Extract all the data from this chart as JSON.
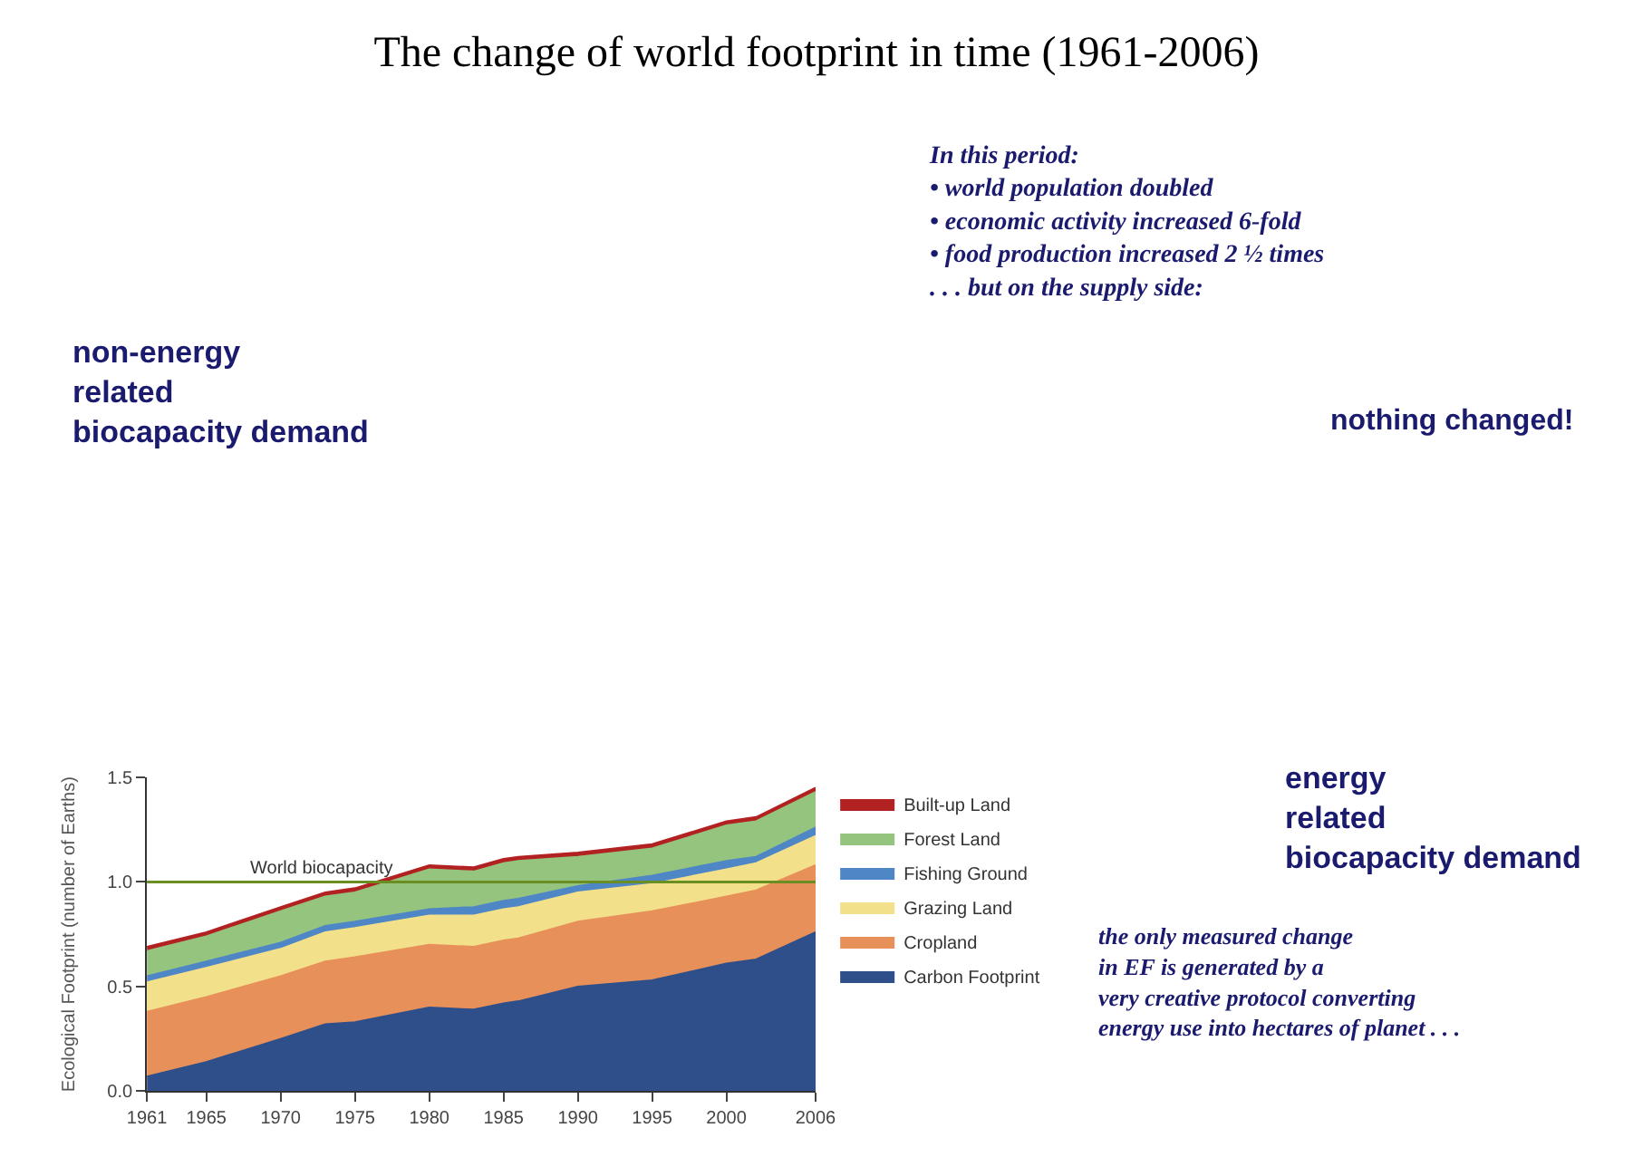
{
  "chart_data": {
    "type": "area",
    "stacked": true,
    "title": "The change of world footprint in time (1961-2006)",
    "ylabel": "Ecological Footprint (number of Earths)",
    "x": [
      1961,
      1965,
      1970,
      1973,
      1975,
      1980,
      1983,
      1985,
      1986,
      1990,
      1995,
      2000,
      2002,
      2006
    ],
    "xlim": [
      1961,
      2006
    ],
    "xticks": [
      1961,
      1965,
      1970,
      1975,
      1980,
      1985,
      1990,
      1995,
      2000,
      2006
    ],
    "ylim": [
      0,
      1.5
    ],
    "yticks": [
      {
        "value": 0,
        "label": "0.0"
      },
      0.5,
      {
        "value": 1,
        "label": "1.0"
      },
      1.5
    ],
    "legend": "right",
    "series": [
      {
        "name": "Carbon Footprint",
        "color": "#2f4f8a",
        "values": [
          0.07,
          0.14,
          0.25,
          0.32,
          0.33,
          0.4,
          0.39,
          0.42,
          0.43,
          0.5,
          0.53,
          0.61,
          0.63,
          0.76
        ]
      },
      {
        "name": "Cropland",
        "color": "#e8905a",
        "values": [
          0.31,
          0.31,
          0.3,
          0.3,
          0.31,
          0.3,
          0.3,
          0.3,
          0.3,
          0.31,
          0.33,
          0.32,
          0.33,
          0.32
        ]
      },
      {
        "name": "Grazing Land",
        "color": "#f3e08a",
        "values": [
          0.14,
          0.14,
          0.13,
          0.14,
          0.14,
          0.14,
          0.15,
          0.15,
          0.15,
          0.14,
          0.13,
          0.13,
          0.13,
          0.14
        ]
      },
      {
        "name": "Fishing Ground",
        "color": "#4f86c6",
        "values": [
          0.03,
          0.03,
          0.03,
          0.03,
          0.03,
          0.03,
          0.04,
          0.04,
          0.04,
          0.03,
          0.04,
          0.04,
          0.03,
          0.04
        ]
      },
      {
        "name": "Forest Land",
        "color": "#94c47d",
        "values": [
          0.12,
          0.12,
          0.15,
          0.14,
          0.14,
          0.19,
          0.17,
          0.18,
          0.18,
          0.14,
          0.13,
          0.17,
          0.17,
          0.17
        ]
      },
      {
        "name": "Built-up Land",
        "color": "#b22222",
        "values": [
          0.02,
          0.02,
          0.02,
          0.02,
          0.02,
          0.02,
          0.02,
          0.02,
          0.02,
          0.02,
          0.02,
          0.02,
          0.02,
          0.02
        ]
      }
    ],
    "ref_lines": [
      {
        "axis": "y",
        "value": 1.0,
        "label": "World biocapacity",
        "color": "#6b8e23"
      }
    ],
    "annotations": [
      "In this period:\n• world population doubled\n• economic activity increased 6-fold\n• food production increased 2 ½ times\n. . . but on the supply side:",
      "nothing changed!",
      "non-energy related biocapacity demand",
      "energy related biocapacity demand",
      "the only measured change in EF is generated by a very creative protocol converting energy use into hectares of planet . . ."
    ]
  }
}
